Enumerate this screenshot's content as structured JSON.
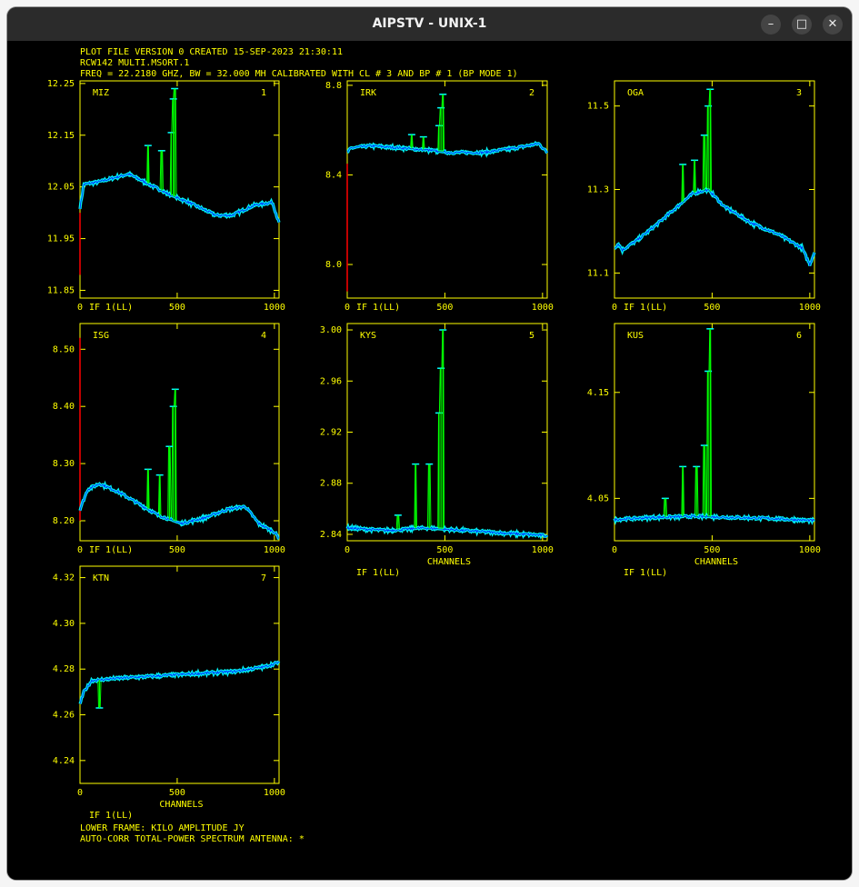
{
  "window": {
    "title": "AIPSTV - UNIX-1",
    "controls": {
      "minimize": "–",
      "maximize": "□",
      "close": "✕"
    }
  },
  "header": {
    "line1": "PLOT FILE VERSION 0  CREATED 15-SEP-2023 21:30:11",
    "line2": "RCW142   MULTI.MSORT.1",
    "line3": "FREQ = 22.2180 GHZ, BW = 32.000 MH   CALIBRATED WITH CL # 3 AND BP # 1 (BP MODE 1)"
  },
  "footer": {
    "line1": "LOWER FRAME: KILO AMPLITUDE JY",
    "line2": "AUTO-CORR TOTAL-POWER SPECTRUM    ANTENNA: *"
  },
  "colors": {
    "background": "#000000",
    "frame": "#ffff00",
    "text": "#ffff00",
    "spectrum": "#00ffff",
    "ticks": "#0000ff",
    "peaks": "#00ff00",
    "flagged": "#ff0000"
  },
  "chart_data": [
    {
      "type": "line",
      "antenna": "MIZ",
      "number": "1",
      "xticks": [
        "0",
        "500",
        "1000"
      ],
      "xlim": [
        0,
        1024
      ],
      "ylim": [
        11.835,
        12.255
      ],
      "yticks": [
        "11.85",
        "11.95",
        "12.05",
        "12.15",
        "12.25"
      ],
      "if_label": "IF 1(LL)",
      "xlabel": "",
      "if_below": false,
      "baseline": [
        [
          0,
          12.01
        ],
        [
          20,
          12.055
        ],
        [
          100,
          12.06
        ],
        [
          250,
          12.075
        ],
        [
          330,
          12.06
        ],
        [
          460,
          12.035
        ],
        [
          560,
          12.02
        ],
        [
          700,
          11.995
        ],
        [
          780,
          11.995
        ],
        [
          900,
          12.015
        ],
        [
          990,
          12.02
        ],
        [
          1024,
          11.98
        ]
      ],
      "peaks": [
        [
          350,
          12.13
        ],
        [
          420,
          12.12
        ],
        [
          470,
          12.155
        ],
        [
          480,
          12.22
        ],
        [
          487,
          12.24
        ]
      ],
      "flag_range": [
        11.88,
        12.0
      ]
    },
    {
      "type": "line",
      "antenna": "IRK",
      "number": "2",
      "xticks": [
        "0",
        "500",
        "1000"
      ],
      "xlim": [
        0,
        1024
      ],
      "ylim": [
        7.85,
        8.82
      ],
      "yticks": [
        "8.0",
        "8.4",
        "8.8"
      ],
      "if_label": "IF 1(LL)",
      "xlabel": "",
      "if_below": false,
      "baseline": [
        [
          0,
          8.5
        ],
        [
          20,
          8.52
        ],
        [
          120,
          8.53
        ],
        [
          280,
          8.52
        ],
        [
          420,
          8.51
        ],
        [
          520,
          8.5
        ],
        [
          700,
          8.5
        ],
        [
          860,
          8.52
        ],
        [
          980,
          8.54
        ],
        [
          1024,
          8.5
        ]
      ],
      "peaks": [
        [
          330,
          8.58
        ],
        [
          390,
          8.57
        ],
        [
          470,
          8.62
        ],
        [
          480,
          8.7
        ],
        [
          490,
          8.76
        ]
      ],
      "flag_range": [
        7.88,
        8.45
      ]
    },
    {
      "type": "line",
      "antenna": "OGA",
      "number": "3",
      "xticks": [
        "0",
        "500",
        "1000"
      ],
      "xlim": [
        0,
        1024
      ],
      "ylim": [
        11.04,
        11.56
      ],
      "yticks": [
        "11.1",
        "11.3",
        "11.5"
      ],
      "if_label": "IF 1(LL)",
      "xlabel": "",
      "if_below": false,
      "baseline": [
        [
          0,
          11.16
        ],
        [
          20,
          11.17
        ],
        [
          40,
          11.155
        ],
        [
          120,
          11.18
        ],
        [
          200,
          11.21
        ],
        [
          300,
          11.25
        ],
        [
          400,
          11.29
        ],
        [
          480,
          11.3
        ],
        [
          560,
          11.26
        ],
        [
          700,
          11.22
        ],
        [
          850,
          11.19
        ],
        [
          960,
          11.16
        ],
        [
          1000,
          11.12
        ],
        [
          1024,
          11.15
        ]
      ],
      "peaks": [
        [
          350,
          11.36
        ],
        [
          410,
          11.37
        ],
        [
          460,
          11.43
        ],
        [
          480,
          11.5
        ],
        [
          490,
          11.54
        ]
      ],
      "flag_range": null
    },
    {
      "type": "line",
      "antenna": "ISG",
      "number": "4",
      "xticks": [
        "0",
        "500",
        "1000"
      ],
      "xlim": [
        0,
        1024
      ],
      "ylim": [
        8.165,
        8.545
      ],
      "yticks": [
        "8.20",
        "8.30",
        "8.40",
        "8.50"
      ],
      "if_label": "IF 1(LL)",
      "xlabel": "",
      "if_below": false,
      "baseline": [
        [
          0,
          8.22
        ],
        [
          40,
          8.255
        ],
        [
          100,
          8.265
        ],
        [
          200,
          8.25
        ],
        [
          300,
          8.23
        ],
        [
          400,
          8.21
        ],
        [
          520,
          8.195
        ],
        [
          640,
          8.205
        ],
        [
          760,
          8.22
        ],
        [
          850,
          8.225
        ],
        [
          920,
          8.195
        ],
        [
          1000,
          8.18
        ],
        [
          1024,
          8.17
        ]
      ],
      "peaks": [
        [
          350,
          8.29
        ],
        [
          410,
          8.28
        ],
        [
          460,
          8.33
        ],
        [
          480,
          8.4
        ],
        [
          490,
          8.43
        ]
      ],
      "flag_range": [
        8.2,
        8.52
      ]
    },
    {
      "type": "line",
      "antenna": "KYS",
      "number": "5",
      "xticks": [
        "0",
        "500",
        "1000"
      ],
      "xlim": [
        0,
        1024
      ],
      "ylim": [
        2.835,
        3.005
      ],
      "yticks": [
        "2.84",
        "2.88",
        "2.92",
        "2.96",
        "3.00"
      ],
      "if_label": "IF 1(LL)",
      "xlabel": "CHANNELS",
      "if_below": true,
      "baseline": [
        [
          0,
          2.845
        ],
        [
          200,
          2.843
        ],
        [
          400,
          2.845
        ],
        [
          600,
          2.843
        ],
        [
          800,
          2.841
        ],
        [
          1024,
          2.839
        ]
      ],
      "peaks": [
        [
          260,
          2.855
        ],
        [
          350,
          2.895
        ],
        [
          420,
          2.895
        ],
        [
          470,
          2.935
        ],
        [
          480,
          2.97
        ],
        [
          490,
          3.0
        ]
      ],
      "flag_range": null
    },
    {
      "type": "line",
      "antenna": "KUS",
      "number": "6",
      "xticks": [
        "0",
        "500",
        "1000"
      ],
      "xlim": [
        0,
        1024
      ],
      "ylim": [
        4.01,
        4.215
      ],
      "yticks": [
        "4.05",
        "4.15"
      ],
      "if_label": "IF 1(LL)",
      "xlabel": "CHANNELS",
      "if_below": true,
      "baseline": [
        [
          0,
          4.03
        ],
        [
          200,
          4.032
        ],
        [
          400,
          4.033
        ],
        [
          600,
          4.032
        ],
        [
          800,
          4.031
        ],
        [
          1024,
          4.029
        ]
      ],
      "peaks": [
        [
          260,
          4.05
        ],
        [
          350,
          4.08
        ],
        [
          420,
          4.08
        ],
        [
          460,
          4.1
        ],
        [
          480,
          4.17
        ],
        [
          490,
          4.21
        ]
      ],
      "flag_range": null
    },
    {
      "type": "line",
      "antenna": "KTN",
      "number": "7",
      "xticks": [
        "0",
        "500",
        "1000"
      ],
      "xlim": [
        0,
        1024
      ],
      "ylim": [
        4.23,
        4.325
      ],
      "yticks": [
        "4.24",
        "4.26",
        "4.28",
        "4.30",
        "4.32"
      ],
      "if_label": "IF 1(LL)",
      "xlabel": "CHANNELS",
      "if_below": true,
      "baseline": [
        [
          0,
          4.265
        ],
        [
          20,
          4.27
        ],
        [
          60,
          4.275
        ],
        [
          200,
          4.276
        ],
        [
          400,
          4.277
        ],
        [
          600,
          4.278
        ],
        [
          800,
          4.279
        ],
        [
          950,
          4.281
        ],
        [
          1024,
          4.283
        ]
      ],
      "peaks": [
        [
          100,
          4.263
        ]
      ],
      "flag_range": null
    }
  ]
}
